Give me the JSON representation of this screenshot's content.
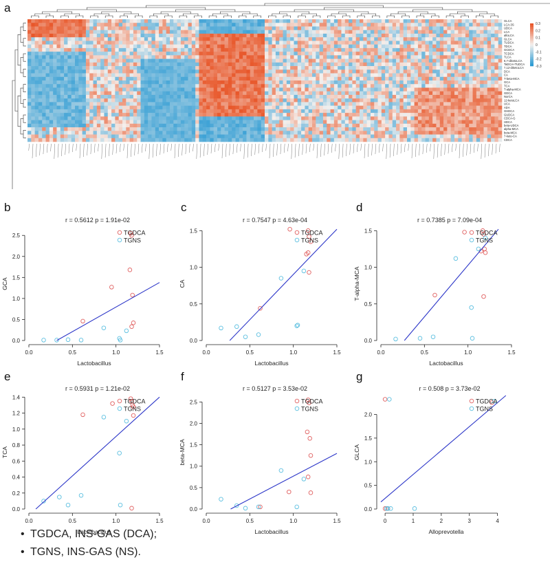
{
  "panels": {
    "a": "a",
    "b": "b",
    "c": "c",
    "d": "d",
    "e": "e",
    "f": "f",
    "g": "g"
  },
  "heatmap": {
    "rows": [
      "GLCA",
      "LCA-3S",
      "UDCA",
      "LCA",
      "alloLCA",
      "GLCA",
      "TUDCA",
      "TDCA",
      "GCDCA",
      "TCDCA",
      "TLCA",
      "6,7-diketoLCA",
      "TaDCA+TUDCA",
      "7,12-diketoLCA",
      "DCA",
      "CA",
      "T-beta-MCA",
      "GCA",
      "TCA",
      "T-alpha-MCA",
      "GDCA",
      "NorCA",
      "12-ketoLCA",
      "UCA",
      "ADA",
      "GHDCA",
      "GUDCA",
      "CDCA-G",
      "HDCA",
      "beta-UDCA",
      "alpha-MCA",
      "beta-MCA",
      "7-keto-CA",
      "CDCA"
    ],
    "legend_ticks": [
      "0.3",
      "0.2",
      "0.1",
      "0",
      "-0.1",
      "-0.2",
      "-0.3"
    ],
    "colors": {
      "high": "#e8572a",
      "mid": "#f5f1ee",
      "low": "#2b9ad3"
    }
  },
  "chart_data": [
    {
      "id": "b",
      "type": "scatter",
      "title": "r = 0.5612   p = 1.91e-02",
      "xlabel": "Lactobacillus",
      "ylabel": "GCA",
      "xlim": [
        0,
        1.5
      ],
      "ylim": [
        0,
        2.7
      ],
      "xticks": [
        "0.0",
        "0.5",
        "1.0",
        "1.5"
      ],
      "yticks": [
        "0.0",
        "0.5",
        "1.0",
        "1.5",
        "2.0",
        "2.5"
      ],
      "ytick_values": [
        0,
        0.5,
        1,
        1.5,
        2,
        2.5
      ],
      "xtick_values": [
        0,
        0.5,
        1,
        1.5
      ],
      "legend": [
        "TGDCA",
        "TGNS"
      ],
      "series": [
        {
          "name": "TGDCA",
          "color": "#e06060",
          "x": [
            1.17,
            1.18,
            1.16,
            1.19,
            0.95,
            0.62,
            1.18,
            1.2
          ],
          "y": [
            2.55,
            2.5,
            1.68,
            1.08,
            1.27,
            0.46,
            0.33,
            0.42
          ]
        },
        {
          "name": "TGNS",
          "color": "#5bbfe0",
          "x": [
            0.17,
            0.32,
            0.45,
            0.86,
            1.04,
            1.12,
            0.6,
            1.05
          ],
          "y": [
            0.01,
            0.01,
            0.02,
            0.3,
            0.05,
            0.23,
            0.01,
            0.01
          ]
        }
      ],
      "fit": {
        "x0": 0.32,
        "y0": 0.0,
        "x1": 1.5,
        "y1": 1.38
      }
    },
    {
      "id": "c",
      "type": "scatter",
      "title": "r = 0.7547   p = 4.63e-04",
      "xlabel": "Lactobacillus",
      "ylabel": "CA",
      "xlim": [
        0,
        1.5
      ],
      "ylim": [
        0,
        1.55
      ],
      "xticks": [
        "0.0",
        "0.5",
        "1.0",
        "1.5"
      ],
      "yticks": [
        "0.0",
        "0.5",
        "1.0",
        "1.5"
      ],
      "ytick_values": [
        0,
        0.5,
        1,
        1.5
      ],
      "xtick_values": [
        0,
        0.5,
        1,
        1.5
      ],
      "legend": [
        "TGDCA",
        "TGNS"
      ],
      "series": [
        {
          "name": "TGDCA",
          "color": "#e06060",
          "x": [
            0.96,
            1.17,
            1.18,
            1.2,
            1.15,
            1.17,
            1.18,
            0.62
          ],
          "y": [
            1.52,
            1.5,
            1.42,
            1.35,
            1.18,
            1.2,
            0.93,
            0.44
          ]
        },
        {
          "name": "TGNS",
          "color": "#5bbfe0",
          "x": [
            0.17,
            0.35,
            0.45,
            0.6,
            0.86,
            1.05,
            1.04,
            1.12
          ],
          "y": [
            0.17,
            0.19,
            0.05,
            0.08,
            0.85,
            0.21,
            0.2,
            0.95
          ]
        }
      ],
      "fit": {
        "x0": 0.27,
        "y0": 0.0,
        "x1": 1.5,
        "y1": 1.52
      }
    },
    {
      "id": "d",
      "type": "scatter",
      "title": "r = 0.7385   p = 7.09e-04",
      "xlabel": "Lactobacillus",
      "ylabel": "T-alpha-MCA",
      "xlim": [
        0,
        1.5
      ],
      "ylim": [
        0,
        1.55
      ],
      "xticks": [
        "0.0",
        "0.5",
        "1.0",
        "1.5"
      ],
      "yticks": [
        "0.0",
        "0.5",
        "1.0",
        "1.5"
      ],
      "ytick_values": [
        0,
        0.5,
        1,
        1.5
      ],
      "xtick_values": [
        0,
        0.5,
        1,
        1.5
      ],
      "legend": [
        "TGDCA",
        "TGNS"
      ],
      "series": [
        {
          "name": "TGDCA",
          "color": "#e06060",
          "x": [
            0.96,
            1.17,
            1.18,
            1.15,
            1.19,
            1.2,
            1.18,
            0.62
          ],
          "y": [
            1.48,
            1.5,
            1.45,
            1.22,
            1.25,
            1.2,
            0.6,
            0.62
          ]
        },
        {
          "name": "TGNS",
          "color": "#5bbfe0",
          "x": [
            0.17,
            0.45,
            0.6,
            0.86,
            1.04,
            1.12,
            1.05,
            1.2
          ],
          "y": [
            0.02,
            0.03,
            0.05,
            1.12,
            0.45,
            1.25,
            0.03,
            1.4
          ]
        }
      ],
      "fit": {
        "x0": 0.27,
        "y0": 0.0,
        "x1": 1.35,
        "y1": 1.52
      }
    },
    {
      "id": "e",
      "type": "scatter",
      "title": "r = 0.5931   p = 1.21e-02",
      "xlabel": "Lactobacillus",
      "ylabel": "TCA",
      "xlim": [
        0,
        1.5
      ],
      "ylim": [
        0,
        1.42
      ],
      "xticks": [
        "0.0",
        "0.5",
        "1.0",
        "1.5"
      ],
      "yticks": [
        "0.0",
        "0.2",
        "0.4",
        "0.6",
        "0.8",
        "1.0",
        "1.2",
        "1.4"
      ],
      "ytick_values": [
        0,
        0.2,
        0.4,
        0.6,
        0.8,
        1,
        1.2,
        1.4
      ],
      "xtick_values": [
        0,
        0.5,
        1,
        1.5
      ],
      "legend": [
        "TGDCA",
        "TGNS"
      ],
      "series": [
        {
          "name": "TGDCA",
          "color": "#e06060",
          "x": [
            0.96,
            1.17,
            1.18,
            1.19,
            1.2,
            0.62,
            1.18,
            1.2
          ],
          "y": [
            1.32,
            1.38,
            1.35,
            1.3,
            1.17,
            1.18,
            0.01,
            1.28
          ]
        },
        {
          "name": "TGNS",
          "color": "#5bbfe0",
          "x": [
            0.17,
            0.35,
            0.45,
            0.6,
            0.86,
            1.04,
            1.05,
            1.12
          ],
          "y": [
            0.1,
            0.15,
            0.05,
            0.17,
            1.15,
            0.7,
            0.05,
            1.1
          ]
        }
      ],
      "fit": {
        "x0": 0.08,
        "y0": 0.0,
        "x1": 1.5,
        "y1": 1.4
      }
    },
    {
      "id": "f",
      "type": "scatter",
      "title": "r = 0.5127   p = 3.53e-02",
      "xlabel": "Lactobacillus",
      "ylabel": "beta-MCA",
      "xlim": [
        0,
        1.5
      ],
      "ylim": [
        0,
        2.65
      ],
      "xticks": [
        "0.0",
        "0.5",
        "1.0",
        "1.5"
      ],
      "yticks": [
        "0.0",
        "0.5",
        "1.0",
        "1.5",
        "2.0",
        "2.5"
      ],
      "ytick_values": [
        0,
        0.5,
        1,
        1.5,
        2,
        2.5
      ],
      "xtick_values": [
        0,
        0.5,
        1,
        1.5
      ],
      "legend": [
        "TGDCA",
        "TGNS"
      ],
      "series": [
        {
          "name": "TGDCA",
          "color": "#e06060",
          "x": [
            1.17,
            1.18,
            1.16,
            1.19,
            1.2,
            0.95,
            1.17,
            1.2,
            0.62
          ],
          "y": [
            2.55,
            2.48,
            1.8,
            1.65,
            1.25,
            0.4,
            0.75,
            0.38,
            0.05
          ]
        },
        {
          "name": "TGNS",
          "color": "#5bbfe0",
          "x": [
            0.17,
            0.35,
            0.45,
            0.6,
            0.86,
            1.04,
            1.12
          ],
          "y": [
            0.23,
            0.08,
            0.02,
            0.05,
            0.9,
            0.05,
            0.7
          ]
        }
      ],
      "fit": {
        "x0": 0.28,
        "y0": 0.0,
        "x1": 1.5,
        "y1": 1.3
      }
    },
    {
      "id": "g",
      "type": "scatter",
      "title": "r = 0.508   p = 3.73e-02",
      "xlabel": "Alloprevotella",
      "ylabel": "GLCA",
      "xlim": [
        -0.15,
        4.5
      ],
      "ylim": [
        0,
        2.4
      ],
      "xticks": [
        "0",
        "1",
        "2",
        "3",
        "4"
      ],
      "yticks": [
        "0.0",
        "0.5",
        "1.0",
        "1.5",
        "2.0"
      ],
      "ytick_values": [
        0,
        0.5,
        1,
        1.5,
        2
      ],
      "xtick_values": [
        0,
        1,
        2,
        3,
        4
      ],
      "legend": [
        "TGDCA",
        "TGNS"
      ],
      "series": [
        {
          "name": "TGDCA",
          "color": "#e06060",
          "x": [
            0.0,
            3.8,
            0.0,
            0.05,
            0.1
          ],
          "y": [
            2.32,
            2.25,
            0.01,
            0.01,
            0.01
          ]
        },
        {
          "name": "TGNS",
          "color": "#5bbfe0",
          "x": [
            0.15,
            3.9,
            0.05,
            0.1,
            0.2,
            1.05
          ],
          "y": [
            2.32,
            2.28,
            0.01,
            0.01,
            0.01,
            0.01
          ]
        }
      ],
      "fit": {
        "x0": -0.15,
        "y0": 0.15,
        "x1": 4.3,
        "y1": 2.4
      }
    }
  ],
  "bullets": [
    "TGDCA, INS-GAS (DCA);",
    "TGNS, INS-GAS (NS)."
  ]
}
